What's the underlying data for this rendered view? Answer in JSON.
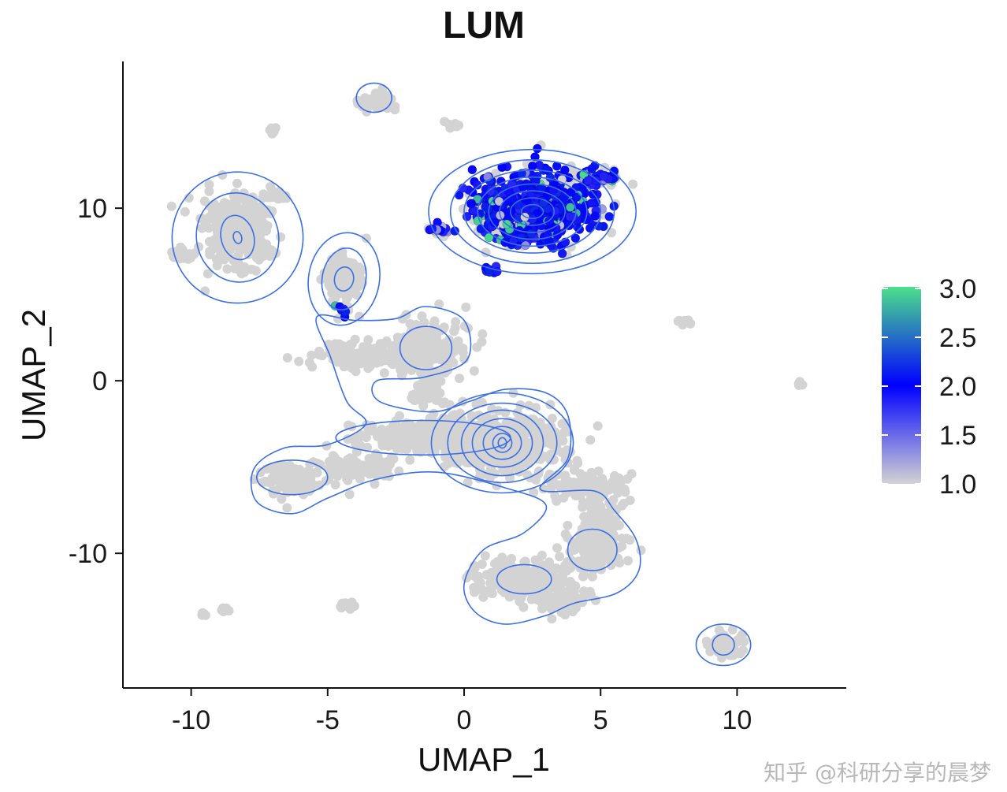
{
  "chart_data": {
    "type": "scatter",
    "title": "LUM",
    "xlabel": "UMAP_1",
    "ylabel": "UMAP_2",
    "xlim": [
      -12.5,
      14
    ],
    "ylim": [
      -17.8,
      18.5
    ],
    "x_ticks": [
      -10,
      -5,
      0,
      5,
      10
    ],
    "y_ticks": [
      -10,
      0,
      10
    ],
    "x_tick_labels": [
      "-10",
      "-5",
      "0",
      "5",
      "10"
    ],
    "y_tick_labels": [
      "-10",
      "0",
      "10"
    ],
    "grid": false,
    "legend": {
      "placement": "right",
      "type": "colorbar",
      "min": 1.0,
      "max": 3.0,
      "ticks": [
        "3.0",
        "2.5",
        "2.0",
        "1.5",
        "1.0"
      ],
      "colors": {
        "low": "#d3d3d3",
        "mid": "#0000ff",
        "high": "#4be08a"
      }
    },
    "point_color_default": "#d3d3d3",
    "contour_color": "#3b6fe6",
    "clusters": [
      {
        "cx": -3.2,
        "cy": 16.1,
        "rx": 0.6,
        "ry": 0.6,
        "n": 60
      },
      {
        "cx": -7.0,
        "cy": 14.5,
        "rx": 0.2,
        "ry": 0.2,
        "n": 8
      },
      {
        "cx": -0.5,
        "cy": 14.8,
        "rx": 0.25,
        "ry": 0.2,
        "n": 8
      },
      {
        "cx": -8.3,
        "cy": 8.5,
        "rx": 1.1,
        "ry": 2.0,
        "n": 260
      },
      {
        "cx": -10.3,
        "cy": 7.4,
        "rx": 0.5,
        "ry": 0.3,
        "n": 20
      },
      {
        "cx": -7.0,
        "cy": 10.7,
        "rx": 0.5,
        "ry": 0.3,
        "n": 20
      },
      {
        "cx": -4.4,
        "cy": 5.8,
        "rx": 0.6,
        "ry": 1.6,
        "n": 130
      },
      {
        "cx": -1.4,
        "cy": 2.0,
        "rx": 1.2,
        "ry": 1.4,
        "n": 200
      },
      {
        "cx": -3.6,
        "cy": 1.4,
        "rx": 1.8,
        "ry": 0.8,
        "n": 120
      },
      {
        "cx": -1.2,
        "cy": -0.5,
        "rx": 0.5,
        "ry": 1.0,
        "n": 50
      },
      {
        "cx": 1.5,
        "cy": -3.5,
        "rx": 2.0,
        "ry": 1.8,
        "n": 400
      },
      {
        "cx": -1.5,
        "cy": -3.2,
        "rx": 2.2,
        "ry": 0.9,
        "n": 240
      },
      {
        "cx": -4.0,
        "cy": -5.0,
        "rx": 1.3,
        "ry": 0.7,
        "n": 110
      },
      {
        "cx": -6.3,
        "cy": -5.6,
        "rx": 0.9,
        "ry": 0.8,
        "n": 130
      },
      {
        "cx": 4.5,
        "cy": -6.2,
        "rx": 1.2,
        "ry": 0.8,
        "n": 110
      },
      {
        "cx": 5.0,
        "cy": -8.0,
        "rx": 0.5,
        "ry": 0.8,
        "n": 50
      },
      {
        "cx": 2.2,
        "cy": -11.5,
        "rx": 1.5,
        "ry": 1.1,
        "n": 220
      },
      {
        "cx": 4.8,
        "cy": -9.8,
        "rx": 1.0,
        "ry": 1.1,
        "n": 170
      },
      {
        "cx": 3.6,
        "cy": -12.6,
        "rx": 1.1,
        "ry": 0.7,
        "n": 80
      },
      {
        "cx": 9.6,
        "cy": -15.3,
        "rx": 0.6,
        "ry": 0.6,
        "n": 60
      },
      {
        "cx": 8.1,
        "cy": 3.4,
        "rx": 0.3,
        "ry": 0.2,
        "n": 12
      },
      {
        "cx": 12.3,
        "cy": -0.1,
        "rx": 0.15,
        "ry": 0.15,
        "n": 6
      },
      {
        "cx": -4.3,
        "cy": -13.0,
        "rx": 0.3,
        "ry": 0.2,
        "n": 12
      },
      {
        "cx": -9.5,
        "cy": -13.5,
        "rx": 0.15,
        "ry": 0.15,
        "n": 5
      },
      {
        "cx": -8.8,
        "cy": -13.3,
        "rx": 0.15,
        "ry": 0.15,
        "n": 5
      },
      {
        "cx": 2.5,
        "cy": 9.9,
        "rx": 1.9,
        "ry": 1.8,
        "n": 240
      },
      {
        "cx": 4.7,
        "cy": 11.8,
        "rx": 0.8,
        "ry": 0.4,
        "n": 40
      },
      {
        "cx": -0.8,
        "cy": 8.6,
        "rx": 0.3,
        "ry": 0.3,
        "n": 12
      }
    ],
    "expressing_clusters": [
      {
        "cx": 2.5,
        "cy": 9.9,
        "rx": 2.0,
        "ry": 1.8,
        "n": 700
      },
      {
        "cx": 4.9,
        "cy": 11.8,
        "rx": 0.8,
        "ry": 0.4,
        "n": 40
      },
      {
        "cx": -0.8,
        "cy": 8.8,
        "rx": 0.6,
        "ry": 0.3,
        "n": 14
      },
      {
        "cx": 1.0,
        "cy": 6.4,
        "rx": 0.4,
        "ry": 0.2,
        "n": 8
      },
      {
        "cx": -4.5,
        "cy": 4.0,
        "rx": 0.3,
        "ry": 0.4,
        "n": 8
      }
    ],
    "contour_groups": [
      {
        "cx": -8.3,
        "cy": 8.3,
        "rx": [
          2.4,
          1.5,
          0.6,
          0.15
        ],
        "ry": [
          3.8,
          2.6,
          1.3,
          0.35
        ],
        "rot": -15
      },
      {
        "cx": -4.4,
        "cy": 5.9,
        "rx": [
          1.3,
          0.8,
          0.35
        ],
        "ry": [
          2.7,
          1.8,
          0.7
        ],
        "rot": 10
      },
      {
        "cx": -1.4,
        "cy": 1.9,
        "rx": [
          0.95
        ],
        "ry": [
          1.25
        ],
        "rot": 0
      },
      {
        "cx": -6.3,
        "cy": -5.6,
        "rx": [
          1.3
        ],
        "ry": [
          1.0
        ],
        "rot": 0
      },
      {
        "cx": 1.4,
        "cy": -3.6,
        "rx": [
          2.6,
          2.0,
          1.5,
          1.1,
          0.7,
          0.35,
          0.15
        ],
        "ry": [
          2.9,
          2.3,
          1.9,
          1.4,
          0.95,
          0.55,
          0.3
        ],
        "rot": 0
      },
      {
        "cx": -1.5,
        "cy": -3.3,
        "rx": [
          3.2
        ],
        "ry": [
          1.0
        ],
        "rot": 0
      },
      {
        "cx": 4.7,
        "cy": -9.8,
        "rx": [
          0.9
        ],
        "ry": [
          1.2
        ],
        "rot": 0
      },
      {
        "cx": 2.2,
        "cy": -11.5,
        "rx": [
          1.0
        ],
        "ry": [
          0.85
        ],
        "rot": 0
      },
      {
        "cx": 9.5,
        "cy": -15.3,
        "rx": [
          1.0,
          0.4
        ],
        "ry": [
          1.2,
          0.6
        ],
        "rot": 0
      },
      {
        "cx": -3.3,
        "cy": 16.4,
        "rx": [
          0.65
        ],
        "ry": [
          0.85
        ],
        "rot": 0
      },
      {
        "cx": 2.5,
        "cy": 9.8,
        "rx": [
          3.8,
          3.0,
          2.5,
          2.0,
          1.6,
          1.2,
          0.8,
          0.4
        ],
        "ry": [
          3.6,
          3.0,
          2.4,
          2.0,
          1.6,
          1.2,
          0.8,
          0.4
        ],
        "rot": 0
      }
    ],
    "contour_outline": [
      [
        -4.0,
        3.5
      ],
      [
        -2.5,
        3.6
      ],
      [
        -1.4,
        4.3
      ],
      [
        0.0,
        3.5
      ],
      [
        0.1,
        1.2
      ],
      [
        -1.5,
        0.2
      ],
      [
        -3.2,
        0.0
      ],
      [
        -3.1,
        -1.2
      ],
      [
        -1.2,
        -1.8
      ],
      [
        0.2,
        -1.2
      ],
      [
        1.5,
        -0.5
      ],
      [
        3.0,
        -0.7
      ],
      [
        3.8,
        -2.0
      ],
      [
        3.8,
        -4.5
      ],
      [
        2.8,
        -6.3
      ],
      [
        4.8,
        -6.4
      ],
      [
        5.5,
        -7.5
      ],
      [
        6.3,
        -9.2
      ],
      [
        6.4,
        -11.0
      ],
      [
        5.6,
        -12.3
      ],
      [
        4.0,
        -12.9
      ],
      [
        3.0,
        -13.6
      ],
      [
        1.5,
        -14.1
      ],
      [
        0.4,
        -13.4
      ],
      [
        0.0,
        -11.8
      ],
      [
        0.7,
        -9.8
      ],
      [
        2.2,
        -8.8
      ],
      [
        3.0,
        -7.2
      ],
      [
        1.5,
        -6.2
      ],
      [
        -1.0,
        -5.3
      ],
      [
        -3.2,
        -5.7
      ],
      [
        -5.0,
        -6.8
      ],
      [
        -6.3,
        -7.7
      ],
      [
        -7.6,
        -7.0
      ],
      [
        -7.7,
        -5.1
      ],
      [
        -6.6,
        -3.9
      ],
      [
        -5.0,
        -3.7
      ],
      [
        -3.6,
        -2.5
      ],
      [
        -4.3,
        -1.2
      ],
      [
        -4.9,
        1.4
      ],
      [
        -5.4,
        3.7
      ]
    ]
  },
  "watermark": "知乎 @科研分享的晨梦"
}
